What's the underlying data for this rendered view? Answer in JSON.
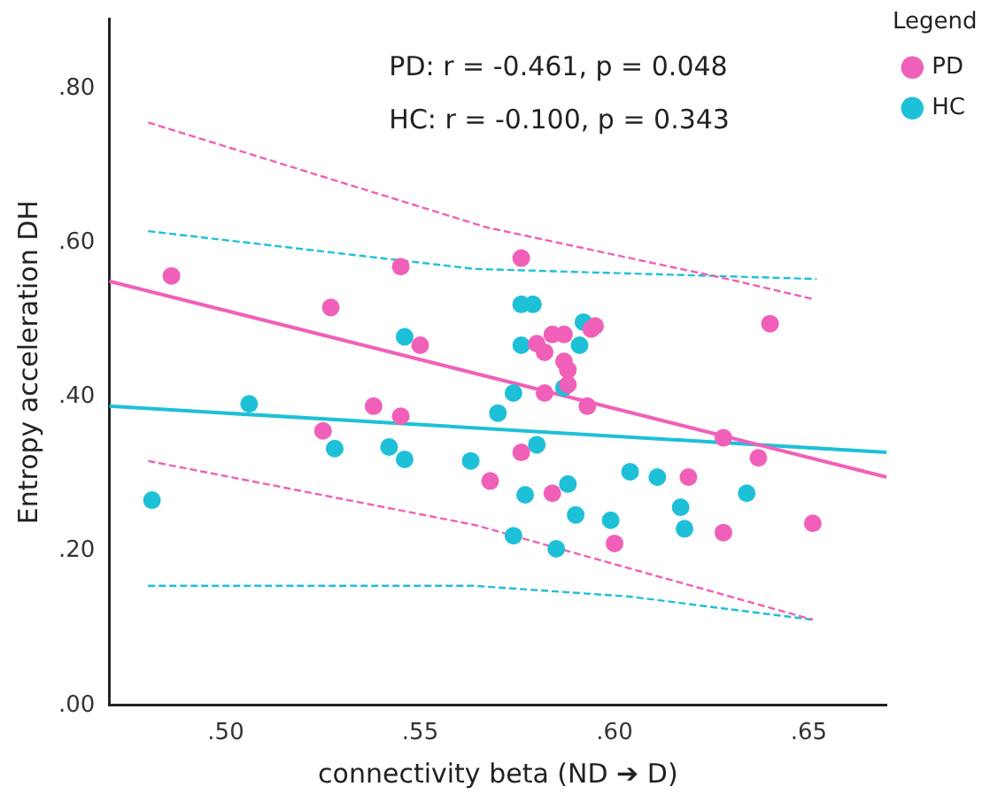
{
  "chart_data": {
    "type": "scatter",
    "xlabel": "connectivity beta (ND ➔ D)",
    "ylabel": "Entropy acceleration DH",
    "legend_title": "Legend",
    "legend": "top right",
    "annotations": [
      "PD: r = -0.461, p = 0.048",
      "HC: r = -0.100, p = 0.343"
    ],
    "xlim": [
      0.47,
      0.67
    ],
    "ylim": [
      0,
      0.89
    ],
    "xticks": [
      {
        "value": 0.5,
        "label": ".50"
      },
      {
        "value": 0.55,
        "label": ".55"
      },
      {
        "value": 0.6,
        "label": ".60"
      },
      {
        "value": 0.65,
        "label": ".65"
      }
    ],
    "yticks": [
      {
        "value": 0,
        "label": ".00"
      },
      {
        "value": 0.2,
        "label": ".20"
      },
      {
        "value": 0.4,
        "label": ".40"
      },
      {
        "value": 0.6,
        "label": ".60"
      },
      {
        "value": 0.8,
        "label": ".80"
      }
    ],
    "series": [
      {
        "name": "PD",
        "color": "#f060b8",
        "x": [
          0.486,
          0.527,
          0.545,
          0.55,
          0.525,
          0.538,
          0.545,
          0.568,
          0.576,
          0.584,
          0.587,
          0.58,
          0.582,
          0.594,
          0.595,
          0.587,
          0.588,
          0.588,
          0.582,
          0.64,
          0.593,
          0.576,
          0.584,
          0.619,
          0.6,
          0.628,
          0.628,
          0.637,
          0.651
        ],
        "values": [
          0.557,
          0.516,
          0.569,
          0.467,
          0.356,
          0.388,
          0.375,
          0.291,
          0.58,
          0.481,
          0.481,
          0.469,
          0.458,
          0.488,
          0.492,
          0.446,
          0.435,
          0.416,
          0.405,
          0.495,
          0.388,
          0.328,
          0.275,
          0.296,
          0.21,
          0.224,
          0.347,
          0.321,
          0.236
        ]
      },
      {
        "name": "HC",
        "color": "#1ec0d8",
        "x": [
          0.481,
          0.506,
          0.528,
          0.542,
          0.546,
          0.546,
          0.563,
          0.57,
          0.574,
          0.576,
          0.579,
          0.576,
          0.592,
          0.591,
          0.587,
          0.58,
          0.577,
          0.588,
          0.59,
          0.604,
          0.611,
          0.617,
          0.618,
          0.599,
          0.574,
          0.585,
          0.634
        ],
        "values": [
          0.266,
          0.391,
          0.333,
          0.335,
          0.319,
          0.478,
          0.317,
          0.379,
          0.405,
          0.52,
          0.52,
          0.467,
          0.497,
          0.467,
          0.412,
          0.338,
          0.273,
          0.287,
          0.247,
          0.303,
          0.296,
          0.257,
          0.229,
          0.24,
          0.22,
          0.203,
          0.275
        ]
      },
      {
        "type": "line",
        "color": "#f060b8",
        "line_style": "solid",
        "marker": "none",
        "x": [
          0.47,
          0.67
        ],
        "values": [
          0.55,
          0.296
        ]
      },
      {
        "type": "line",
        "color": "#1ec0d8",
        "line_style": "solid",
        "marker": "none",
        "x": [
          0.47,
          0.67
        ],
        "values": [
          0.388,
          0.328
        ]
      },
      {
        "type": "line",
        "color": "#f060b8",
        "line_style": "dashed",
        "marker": "none",
        "x": [
          0.48,
          0.567,
          0.629,
          0.651
        ],
        "values": [
          0.756,
          0.62,
          0.553,
          0.527
        ]
      },
      {
        "type": "line",
        "color": "#f060b8",
        "line_style": "dashed",
        "marker": "none",
        "x": [
          0.48,
          0.564,
          0.651
        ],
        "values": [
          0.317,
          0.234,
          0.111
        ]
      },
      {
        "type": "line",
        "color": "#1ec0d8",
        "line_style": "dashed",
        "marker": "none",
        "x": [
          0.48,
          0.564,
          0.652
        ],
        "values": [
          0.615,
          0.566,
          0.553
        ]
      },
      {
        "type": "line",
        "color": "#1ec0d8",
        "line_style": "dashed",
        "marker": "none",
        "x": [
          0.48,
          0.564,
          0.604,
          0.651
        ],
        "values": [
          0.155,
          0.155,
          0.141,
          0.111
        ]
      }
    ]
  }
}
